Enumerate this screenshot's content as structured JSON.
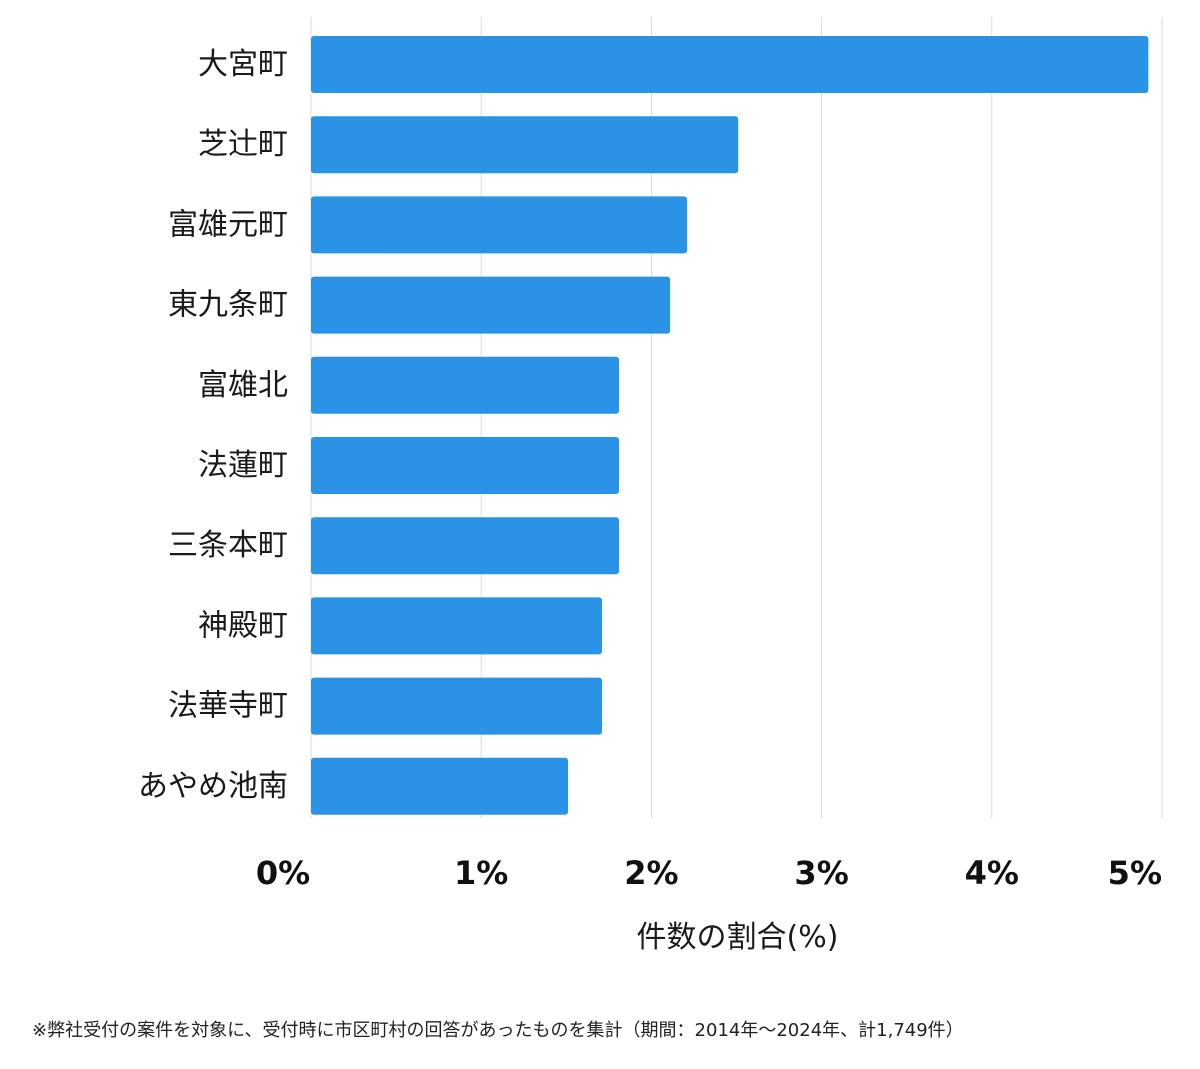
{
  "chart_data": {
    "type": "bar",
    "orientation": "horizontal",
    "categories": [
      "大宮町",
      "芝辻町",
      "富雄元町",
      "東九条町",
      "富雄北",
      "法蓮町",
      "三条本町",
      "神殿町",
      "法華寺町",
      "あやめ池南"
    ],
    "values": [
      4.92,
      2.51,
      2.21,
      2.11,
      1.81,
      1.81,
      1.81,
      1.71,
      1.71,
      1.51
    ],
    "xlim": [
      0,
      5
    ],
    "xticks": [
      0,
      1,
      2,
      3,
      4,
      5
    ],
    "tick_labels": [
      "0%",
      "1%",
      "2%",
      "3%",
      "4%",
      "5%"
    ],
    "xlabel": "件数の割合(%)",
    "ylabel": "",
    "grid": true,
    "bar_color": "#2b93e6",
    "grid_color": "#d9d9d9"
  },
  "footnote": "※弊社受付の案件を対象に、受付時に市区町村の回答があったものを集計（期間：2014年～2024年、計1,749件）"
}
